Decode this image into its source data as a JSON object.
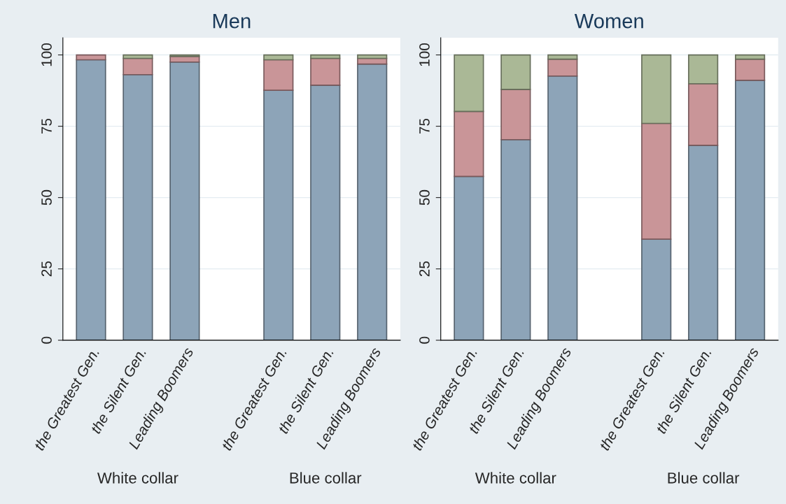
{
  "chart_data": [
    {
      "type": "bar",
      "title": "Men",
      "stacked": true,
      "categories": [
        "the Greatest Gen.",
        "the Silent Gen.",
        "Leading Boomers",
        null,
        "the Greatest Gen.",
        "the Silent Gen.",
        "Leading Boomers"
      ],
      "series": [
        {
          "color": "#8da4b8",
          "values": [
            98.3,
            93.1,
            97.5,
            null,
            87.6,
            89.4,
            96.8
          ]
        },
        {
          "color": "#c99598",
          "values": [
            1.7,
            5.7,
            2.0,
            null,
            10.7,
            9.4,
            2.0
          ]
        },
        {
          "color": "#aab896",
          "values": [
            null,
            1.2,
            0.5,
            null,
            1.7,
            1.2,
            1.2
          ]
        }
      ],
      "ylim": [
        0,
        106
      ],
      "yticks": [
        0,
        25,
        50,
        75,
        100
      ],
      "grid": "y",
      "annotations": [
        "White collar",
        "Blue collar"
      ]
    },
    {
      "type": "bar",
      "title": "Women",
      "stacked": true,
      "categories": [
        "the Greatest Gen.",
        "the Silent Gen.",
        "Leading Boomers",
        null,
        "the Greatest Gen.",
        "the Silent Gen.",
        "Leading Boomers"
      ],
      "series": [
        {
          "color": "#8da4b8",
          "values": [
            57.4,
            70.3,
            92.6,
            null,
            35.4,
            68.3,
            91.1
          ]
        },
        {
          "color": "#c99598",
          "values": [
            22.8,
            17.6,
            5.9,
            null,
            40.6,
            21.6,
            7.4
          ]
        },
        {
          "color": "#aab896",
          "values": [
            19.8,
            12.1,
            1.5,
            null,
            24.0,
            10.1,
            1.5
          ]
        }
      ],
      "ylim": [
        0,
        106
      ],
      "yticks": [
        0,
        25,
        50,
        75,
        100
      ],
      "grid": "y",
      "annotations": [
        "White collar",
        "Blue collar"
      ]
    }
  ]
}
